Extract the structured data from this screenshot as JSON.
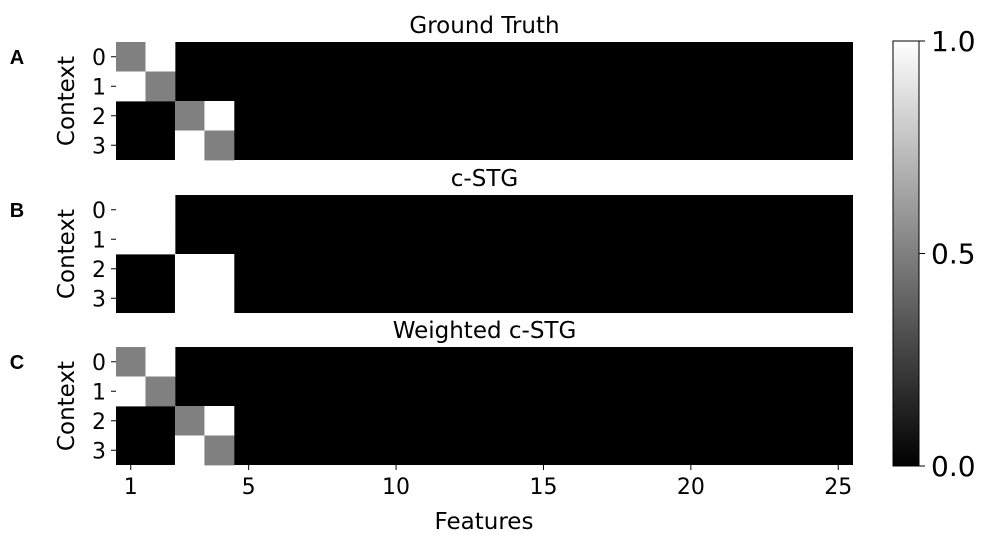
{
  "chart_data": {
    "type": "heatmap",
    "colormap": "gray",
    "vmin": 0.0,
    "vmax": 1.0,
    "n_features": 25,
    "xlabel": "Features",
    "x_ticks": [
      "1",
      "5",
      "10",
      "15",
      "20",
      "25"
    ],
    "x_tick_values": [
      1,
      5,
      10,
      15,
      20,
      25
    ],
    "colorbar_ticks": [
      "0.0",
      "0.5",
      "1.0"
    ],
    "colorbar_tick_values": [
      0.0,
      0.5,
      1.0
    ],
    "panels": [
      {
        "letter": "A",
        "title": "Ground Truth",
        "ylabel": "Context",
        "row_labels": [
          "0",
          "1",
          "2",
          "3"
        ],
        "nonzero": [
          {
            "context": 0,
            "feature": 1,
            "value": 0.5
          },
          {
            "context": 0,
            "feature": 2,
            "value": 1.0
          },
          {
            "context": 1,
            "feature": 1,
            "value": 1.0
          },
          {
            "context": 1,
            "feature": 2,
            "value": 0.5
          },
          {
            "context": 2,
            "feature": 3,
            "value": 0.5
          },
          {
            "context": 2,
            "feature": 4,
            "value": 1.0
          },
          {
            "context": 3,
            "feature": 3,
            "value": 1.0
          },
          {
            "context": 3,
            "feature": 4,
            "value": 0.5
          }
        ]
      },
      {
        "letter": "B",
        "title": "c-STG",
        "ylabel": "Context",
        "row_labels": [
          "0",
          "1",
          "2",
          "3"
        ],
        "nonzero": [
          {
            "context": 0,
            "feature": 1,
            "value": 1.0
          },
          {
            "context": 0,
            "feature": 2,
            "value": 1.0
          },
          {
            "context": 1,
            "feature": 1,
            "value": 1.0
          },
          {
            "context": 1,
            "feature": 2,
            "value": 1.0
          },
          {
            "context": 2,
            "feature": 3,
            "value": 1.0
          },
          {
            "context": 2,
            "feature": 4,
            "value": 1.0
          },
          {
            "context": 3,
            "feature": 3,
            "value": 1.0
          },
          {
            "context": 3,
            "feature": 4,
            "value": 1.0
          }
        ]
      },
      {
        "letter": "C",
        "title": "Weighted c-STG",
        "ylabel": "Context",
        "row_labels": [
          "0",
          "1",
          "2",
          "3"
        ],
        "nonzero": [
          {
            "context": 0,
            "feature": 1,
            "value": 0.5
          },
          {
            "context": 0,
            "feature": 2,
            "value": 1.0
          },
          {
            "context": 1,
            "feature": 1,
            "value": 1.0
          },
          {
            "context": 1,
            "feature": 2,
            "value": 0.5
          },
          {
            "context": 2,
            "feature": 3,
            "value": 0.5
          },
          {
            "context": 2,
            "feature": 4,
            "value": 1.0
          },
          {
            "context": 3,
            "feature": 3,
            "value": 1.0
          },
          {
            "context": 3,
            "feature": 4,
            "value": 0.5
          }
        ]
      }
    ]
  }
}
